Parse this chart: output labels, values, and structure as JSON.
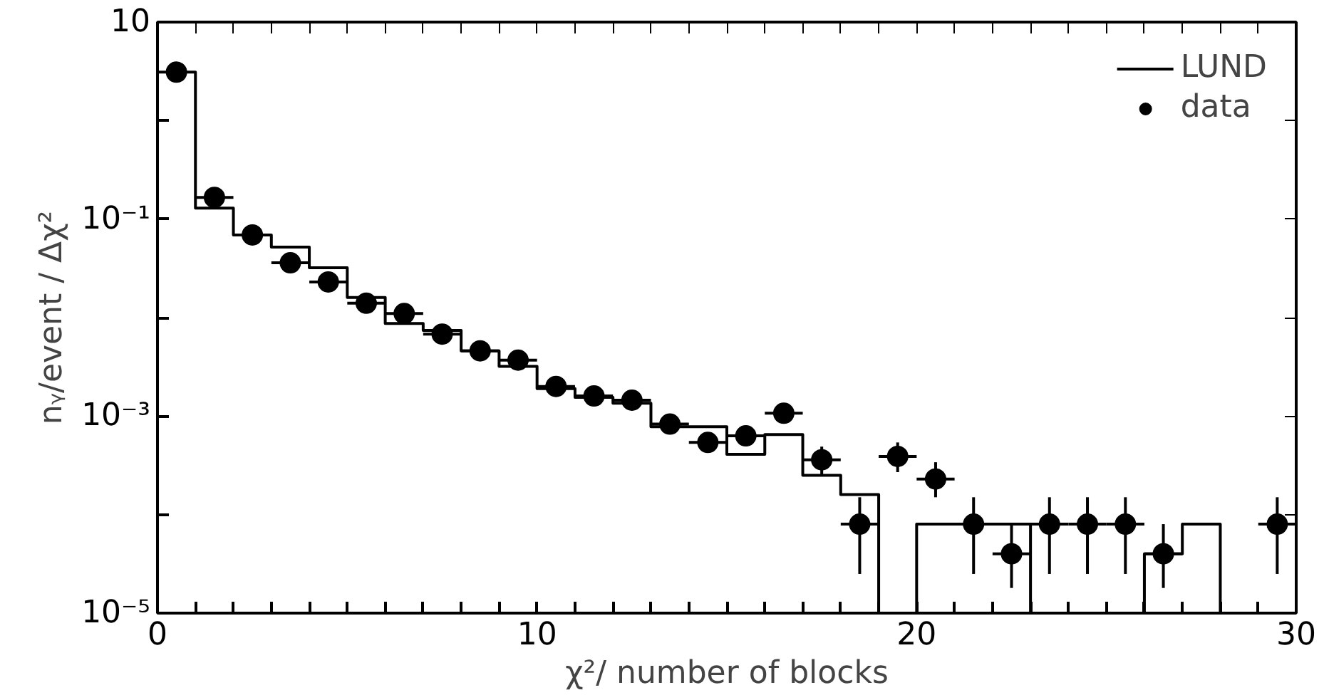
{
  "chart_data": {
    "type": "histogram",
    "xlabel": "χ²/ number of blocks",
    "ylabel": "nᵧ/event / Δχ²",
    "bins": [
      0,
      1,
      2,
      3,
      4,
      5,
      6,
      7,
      8,
      9,
      10,
      11,
      12,
      13,
      14,
      15,
      16,
      17,
      18,
      19,
      20,
      21,
      22,
      23,
      24,
      25,
      26,
      27,
      28,
      29,
      30
    ],
    "series": [
      {
        "name": "LUND",
        "color": "#000000",
        "values": [
          3.1,
          0.129,
          0.069,
          0.052,
          0.032,
          0.016,
          0.0087,
          0.0074,
          0.0046,
          0.0032,
          0.0019,
          0.00155,
          0.00135,
          0.00078,
          0.00078,
          0.00041,
          0.00065,
          0.00025,
          0.00016,
          null,
          8e-05,
          8e-05,
          8e-05,
          null,
          null,
          null,
          4e-05,
          8e-05,
          null,
          null
        ]
      },
      {
        "name": "data",
        "type": "scatter",
        "color": "#000000",
        "marker": "circle",
        "x": [
          0.5,
          1.5,
          2.5,
          3.5,
          4.5,
          5.5,
          6.5,
          7.5,
          8.5,
          9.5,
          10.5,
          11.5,
          12.5,
          13.5,
          14.5,
          15.5,
          16.5,
          17.5,
          18.5,
          19.5,
          20.5,
          21.5,
          22.5,
          23.5,
          24.5,
          25.5,
          26.5,
          29.5
        ],
        "values": [
          3.1,
          0.166,
          0.069,
          0.036,
          0.023,
          0.014,
          0.011,
          0.0068,
          0.0046,
          0.0037,
          0.002,
          0.0016,
          0.00145,
          0.00083,
          0.00054,
          0.00063,
          0.00107,
          0.00036,
          8e-05,
          0.00039,
          0.00023,
          8e-05,
          4e-05,
          8e-05,
          8e-05,
          8e-05,
          4e-05,
          8e-05
        ],
        "errors": [
          null,
          null,
          null,
          null,
          null,
          null,
          null,
          null,
          null,
          null,
          null,
          null,
          null,
          null,
          null,
          null,
          null,
          [
            0.00025,
            0.00049
          ],
          [
            2.5e-05,
            0.00015
          ],
          [
            0.00027,
            0.00054
          ],
          [
            0.00015,
            0.00034
          ],
          [
            2.5e-05,
            0.00015
          ],
          [
            1.8e-05,
            8e-05
          ],
          [
            2.5e-05,
            0.00015
          ],
          [
            2.5e-05,
            0.00015
          ],
          [
            2.5e-05,
            0.00015
          ],
          [
            1.8e-05,
            8e-05
          ],
          [
            2.5e-05,
            0.00015
          ]
        ],
        "xerrors": [
          null,
          0.5,
          0.5,
          0.5,
          0.5,
          0.5,
          0.5,
          0.5,
          0.5,
          0.5,
          0.5,
          0.5,
          0.5,
          0.5,
          0.5,
          0.5,
          0.5,
          0.5,
          0.5,
          0.5,
          0.5,
          0.5,
          0.5,
          0.5,
          0.5,
          0.5,
          0.5,
          0.5
        ]
      }
    ],
    "log": "y",
    "xlim": [
      0,
      30
    ],
    "xticks": [
      0,
      {
        "value": 1,
        "label": null
      },
      {
        "value": 2,
        "label": null
      },
      {
        "value": 3,
        "label": null
      },
      {
        "value": 4,
        "label": null
      },
      {
        "value": 5,
        "label": null
      },
      {
        "value": 6,
        "label": null
      },
      {
        "value": 7,
        "label": null
      },
      {
        "value": 8,
        "label": null
      },
      {
        "value": 9,
        "label": null
      },
      10,
      {
        "value": 11,
        "label": null
      },
      {
        "value": 12,
        "label": null
      },
      {
        "value": 13,
        "label": null
      },
      {
        "value": 14,
        "label": null
      },
      {
        "value": 15,
        "label": null
      },
      {
        "value": 16,
        "label": null
      },
      {
        "value": 17,
        "label": null
      },
      {
        "value": 18,
        "label": null
      },
      {
        "value": 19,
        "label": null
      },
      20,
      {
        "value": 21,
        "label": null
      },
      {
        "value": 22,
        "label": null
      },
      {
        "value": 23,
        "label": null
      },
      {
        "value": 24,
        "label": null
      },
      {
        "value": 25,
        "label": null
      },
      {
        "value": 26,
        "label": null
      },
      {
        "value": 27,
        "label": null
      },
      {
        "value": 28,
        "label": null
      },
      {
        "value": 29,
        "label": null
      },
      30
    ],
    "ylim": [
      1e-05,
      10
    ],
    "yticks": [
      {
        "value": 10,
        "label": "10"
      },
      {
        "value": 1,
        "label": null
      },
      {
        "value": 0.1,
        "label": "10⁻¹"
      },
      {
        "value": 0.01,
        "label": null
      },
      {
        "value": 0.001,
        "label": "10⁻³"
      },
      {
        "value": 0.0001,
        "label": null
      },
      {
        "value": 1e-05,
        "label": "10⁻⁵"
      }
    ],
    "legend": "top right",
    "grid": false
  }
}
